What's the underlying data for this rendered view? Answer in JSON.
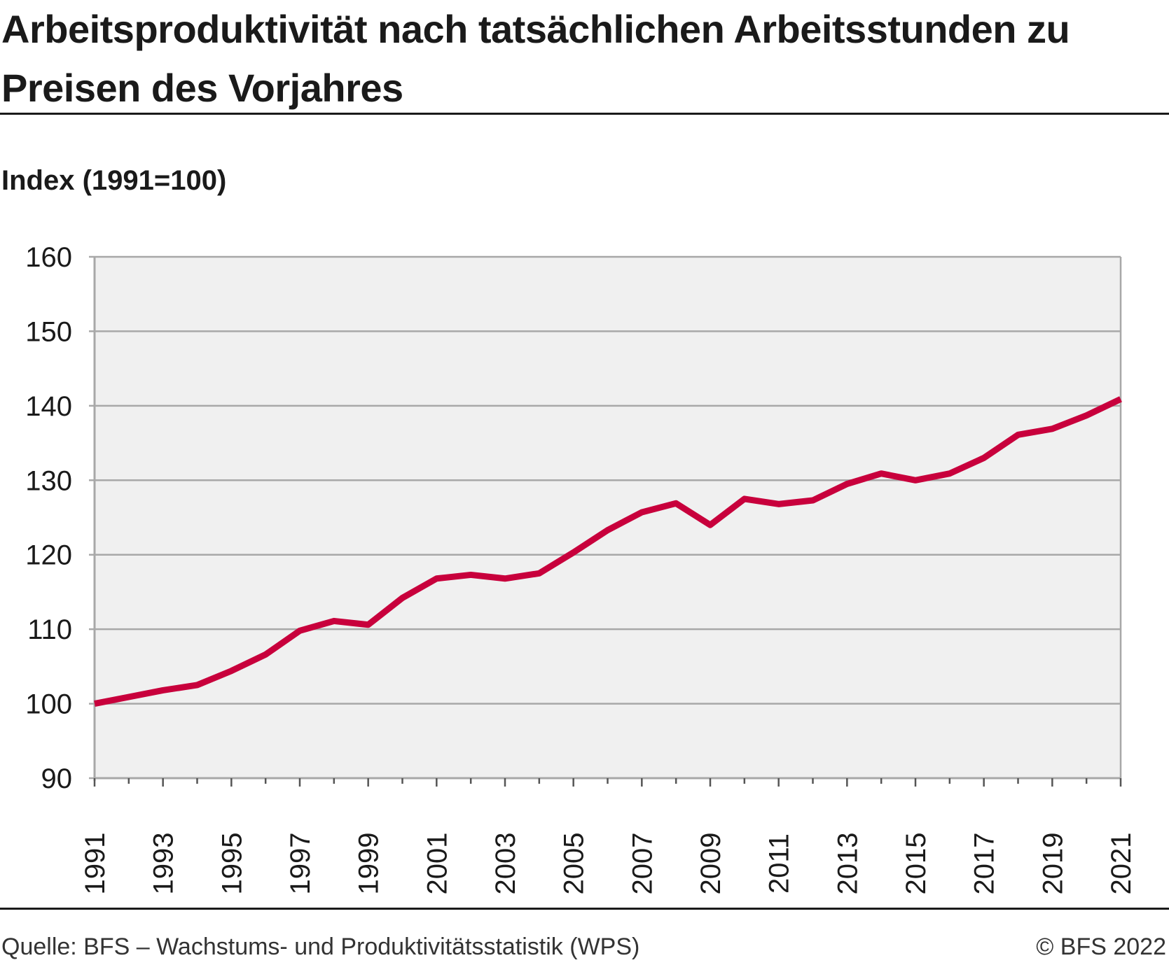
{
  "header": {
    "title": "Arbeitsproduktivität nach tatsächlichen Arbeitsstunden zu Preisen des Vorjahres"
  },
  "footer": {
    "source": "Quelle: BFS – Wachstums- und Produktivitätsstatistik (WPS)",
    "copyright": "© BFS 2022"
  },
  "chart_data": {
    "type": "line",
    "title": "Arbeitsproduktivität nach tatsächlichen Arbeitsstunden zu Preisen des Vorjahres",
    "ylabel": "Index (1991=100)",
    "xlabel": "",
    "ylim": [
      90,
      160
    ],
    "yticks": [
      90,
      100,
      110,
      120,
      130,
      140,
      150,
      160
    ],
    "xticklabels": [
      "1991",
      "1993",
      "1995",
      "1997",
      "1999",
      "2001",
      "2003",
      "2005",
      "2007",
      "2009",
      "2011",
      "2013",
      "2015",
      "2017",
      "2019",
      "2021"
    ],
    "grid": true,
    "background": "#f0f0f0",
    "line_color": "#c8003c",
    "x": [
      1991,
      1992,
      1993,
      1994,
      1995,
      1996,
      1997,
      1998,
      1999,
      2000,
      2001,
      2002,
      2003,
      2004,
      2005,
      2006,
      2007,
      2008,
      2009,
      2010,
      2011,
      2012,
      2013,
      2014,
      2015,
      2016,
      2017,
      2018,
      2019,
      2020,
      2021
    ],
    "series": [
      {
        "values": [
          100.0,
          100.9,
          101.8,
          102.5,
          104.4,
          106.6,
          109.8,
          111.1,
          110.6,
          114.2,
          116.8,
          117.3,
          116.8,
          117.5,
          120.3,
          123.3,
          125.7,
          126.9,
          124.0,
          127.5,
          126.8,
          127.3,
          129.5,
          130.9,
          130.0,
          130.9,
          133.0,
          136.1,
          136.9,
          138.7,
          140.9
        ]
      }
    ]
  }
}
